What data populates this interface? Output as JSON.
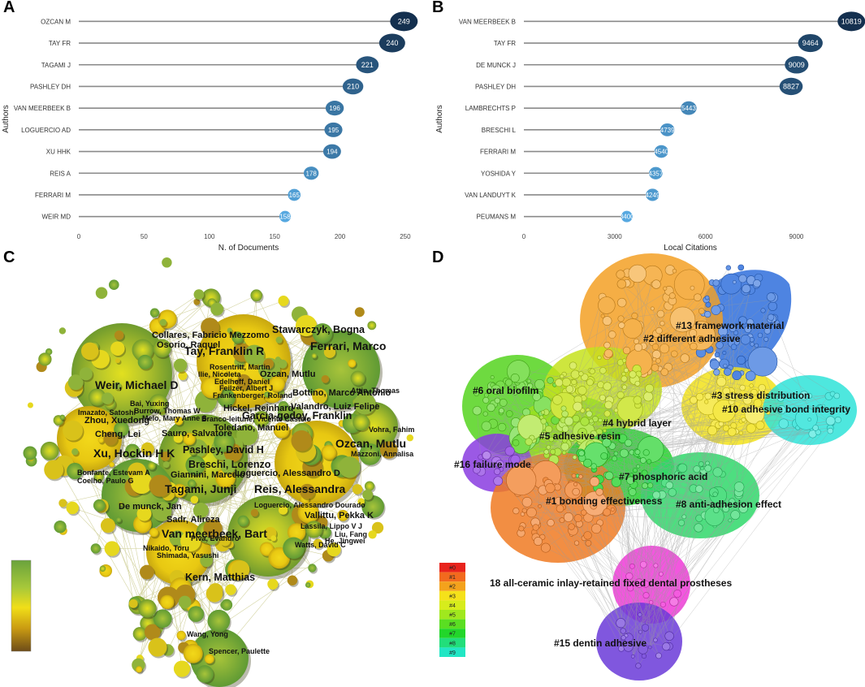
{
  "panels": {
    "a": "A",
    "b": "B",
    "c": "C",
    "d": "D"
  },
  "chart_data": [
    {
      "type": "lollipop",
      "title": "",
      "xlabel": "N. of Documents",
      "ylabel": "Authors",
      "xlim": [
        0,
        260
      ],
      "xticks": [
        0,
        50,
        100,
        150,
        200,
        250
      ],
      "categories": [
        "OZCAN M",
        "TAY FR",
        "TAGAMI J",
        "PASHLEY DH",
        "VAN MEERBEEK B",
        "LOGUERCIO AD",
        "XU HHK",
        "REIS A",
        "FERRARI M",
        "WEIR MD"
      ],
      "values": [
        249,
        240,
        221,
        210,
        196,
        195,
        194,
        178,
        165,
        158
      ],
      "value_labels": [
        "249",
        "240",
        "221",
        "210",
        "196",
        "195",
        "194",
        "178",
        "165",
        "158"
      ],
      "color_dark": "#14304f",
      "color_light": "#56a8e0"
    },
    {
      "type": "lollipop",
      "title": "",
      "xlabel": "Local Citations",
      "ylabel": "Authors",
      "xlim": [
        0,
        11000
      ],
      "xticks": [
        0,
        3000,
        6000,
        9000
      ],
      "categories": [
        "VAN MEERBEEK B",
        "TAY FR",
        "DE MUNCK J",
        "PASHLEY DH",
        "LAMBRECHTS P",
        "BRESCHI L",
        "FERRARI M",
        "YOSHIDA Y",
        "VAN LANDUYT K",
        "PEUMANS M"
      ],
      "values": [
        10819,
        9464,
        9009,
        8827,
        5443,
        4739,
        4540,
        4357,
        4249,
        3400
      ],
      "value_labels": [
        "10819",
        "9464",
        "9009",
        "8827",
        "5443",
        "4739",
        "4540",
        "4357",
        "4249",
        "3400"
      ],
      "color_dark": "#14304f",
      "color_light": "#56a8e0"
    }
  ],
  "network_c": {
    "labels": [
      {
        "text": "Collares, Fabricio Mezzomo",
        "size": "m"
      },
      {
        "text": "Stawarczyk, Bogna",
        "size": "l"
      },
      {
        "text": "Osorio, Raquel",
        "size": "m"
      },
      {
        "text": "Tay, Franklin R",
        "size": "xl"
      },
      {
        "text": "Ferrari, Marco",
        "size": "xl"
      },
      {
        "text": "Rosentritt, Martin",
        "size": "s"
      },
      {
        "text": "Ilie, Nicoleta",
        "size": "s"
      },
      {
        "text": "Ozcan, Mutlu",
        "size": "m"
      },
      {
        "text": "Edelhoff, Daniel",
        "size": "s"
      },
      {
        "text": "Weir, Michael D",
        "size": "xl"
      },
      {
        "text": "Feilzer, Albert J",
        "size": "s"
      },
      {
        "text": "Frankenberger, Roland",
        "size": "s"
      },
      {
        "text": "Bottino, Marco Antonio",
        "size": "m"
      },
      {
        "text": "Attin, Thomas",
        "size": "s"
      },
      {
        "text": "Bai, Yuxing",
        "size": "s"
      },
      {
        "text": "Burrow, Thomas W",
        "size": "s"
      },
      {
        "text": "Melo, Mary Anne S",
        "size": "s"
      },
      {
        "text": "Imazato, Satoshi",
        "size": "s"
      },
      {
        "text": "Zhou, Xuedong",
        "size": "m"
      },
      {
        "text": "Hickel, Reinhard",
        "size": "m"
      },
      {
        "text": "Branco-Ieitune, Vicente Castelo",
        "size": "s"
      },
      {
        "text": "Valandro, Luiz Felipe",
        "size": "m"
      },
      {
        "text": "Garcia-godoy, Franklin",
        "size": "l"
      },
      {
        "text": "Toledano, Manuel",
        "size": "m"
      },
      {
        "text": "Vohra, Fahim",
        "size": "s"
      },
      {
        "text": "Cheng, Lei",
        "size": "m"
      },
      {
        "text": "Sauro, Salvatore",
        "size": "m"
      },
      {
        "text": "Ozcan, Mutlu",
        "size": "xl"
      },
      {
        "text": "Xu, Hockin H K",
        "size": "xl"
      },
      {
        "text": "Pashley, David H",
        "size": "l"
      },
      {
        "text": "Mazzoni, Annalisa",
        "size": "s"
      },
      {
        "text": "Breschi, Lorenzo",
        "size": "l"
      },
      {
        "text": "Bonfante, Estevam A",
        "size": "s"
      },
      {
        "text": "Giannini, Marcelo",
        "size": "m"
      },
      {
        "text": "Loguercio, Alessandro D",
        "size": "m"
      },
      {
        "text": "Coelho, Paulo G",
        "size": "s"
      },
      {
        "text": "Tagami, Junji",
        "size": "xl"
      },
      {
        "text": "Reis, Alessandra",
        "size": "xl"
      },
      {
        "text": "Loguercio, Alessandro Dourado",
        "size": "s"
      },
      {
        "text": "De munck, Jan",
        "size": "m"
      },
      {
        "text": "Sadr, Alireza",
        "size": "m"
      },
      {
        "text": "Vallittu, Pekka K",
        "size": "m"
      },
      {
        "text": "Lassila, Lippo V J",
        "size": "s"
      },
      {
        "text": "Van meerbeek, Bart",
        "size": "xl"
      },
      {
        "text": "Liu, Fang",
        "size": "s"
      },
      {
        "text": "He, Jingwei",
        "size": "s"
      },
      {
        "text": "Piva, Evandro",
        "size": "s"
      },
      {
        "text": "Watts, David C",
        "size": "s"
      },
      {
        "text": "Nikaido, Toru",
        "size": "s"
      },
      {
        "text": "Shimada, Yasushi",
        "size": "s"
      },
      {
        "text": "Kern, Matthias",
        "size": "l"
      },
      {
        "text": "Wang, Yong",
        "size": "s"
      },
      {
        "text": "Spencer, Paulette",
        "size": "s"
      }
    ]
  },
  "network_d": {
    "clusters": [
      {
        "label": "#13 framework material",
        "color": "#2f6fdc"
      },
      {
        "label": "#2 different adhesive",
        "color": "#f3a024"
      },
      {
        "label": "#6 oral biofilm",
        "color": "#55d41e"
      },
      {
        "label": "#3 stress distribution",
        "color": "#f2e21a"
      },
      {
        "label": "#10 adhesive bond integrity",
        "color": "#2fe3d8"
      },
      {
        "label": "#4 hybrid layer",
        "color": "#c6e21c"
      },
      {
        "label": "#5 adhesive resin",
        "color": "#9ee01e"
      },
      {
        "label": "#16 failure mode",
        "color": "#8a3ce0"
      },
      {
        "label": "#7 phosphoric acid",
        "color": "#22d22a"
      },
      {
        "label": "#1 bonding effectiveness",
        "color": "#f07a22"
      },
      {
        "label": "#8 anti-adhesion effect",
        "color": "#2fd86a"
      },
      {
        "label": "18 all-ceramic inlay-retained fixed dental prostheses",
        "color": "#f03ad8"
      },
      {
        "label": "#15 dentin adhesive",
        "color": "#6a3ad8"
      }
    ],
    "legend": [
      {
        "label": "#0",
        "color": "#e8231c"
      },
      {
        "label": "#1",
        "color": "#f26a1e"
      },
      {
        "label": "#2",
        "color": "#f4a21c"
      },
      {
        "label": "#3",
        "color": "#f5e11a"
      },
      {
        "label": "#4",
        "color": "#d7ec1c"
      },
      {
        "label": "#5",
        "color": "#a0e81e"
      },
      {
        "label": "#6",
        "color": "#5ade22"
      },
      {
        "label": "#7",
        "color": "#22d62a"
      },
      {
        "label": "#8",
        "color": "#22de7a"
      },
      {
        "label": "#9",
        "color": "#22e6c4"
      }
    ]
  }
}
